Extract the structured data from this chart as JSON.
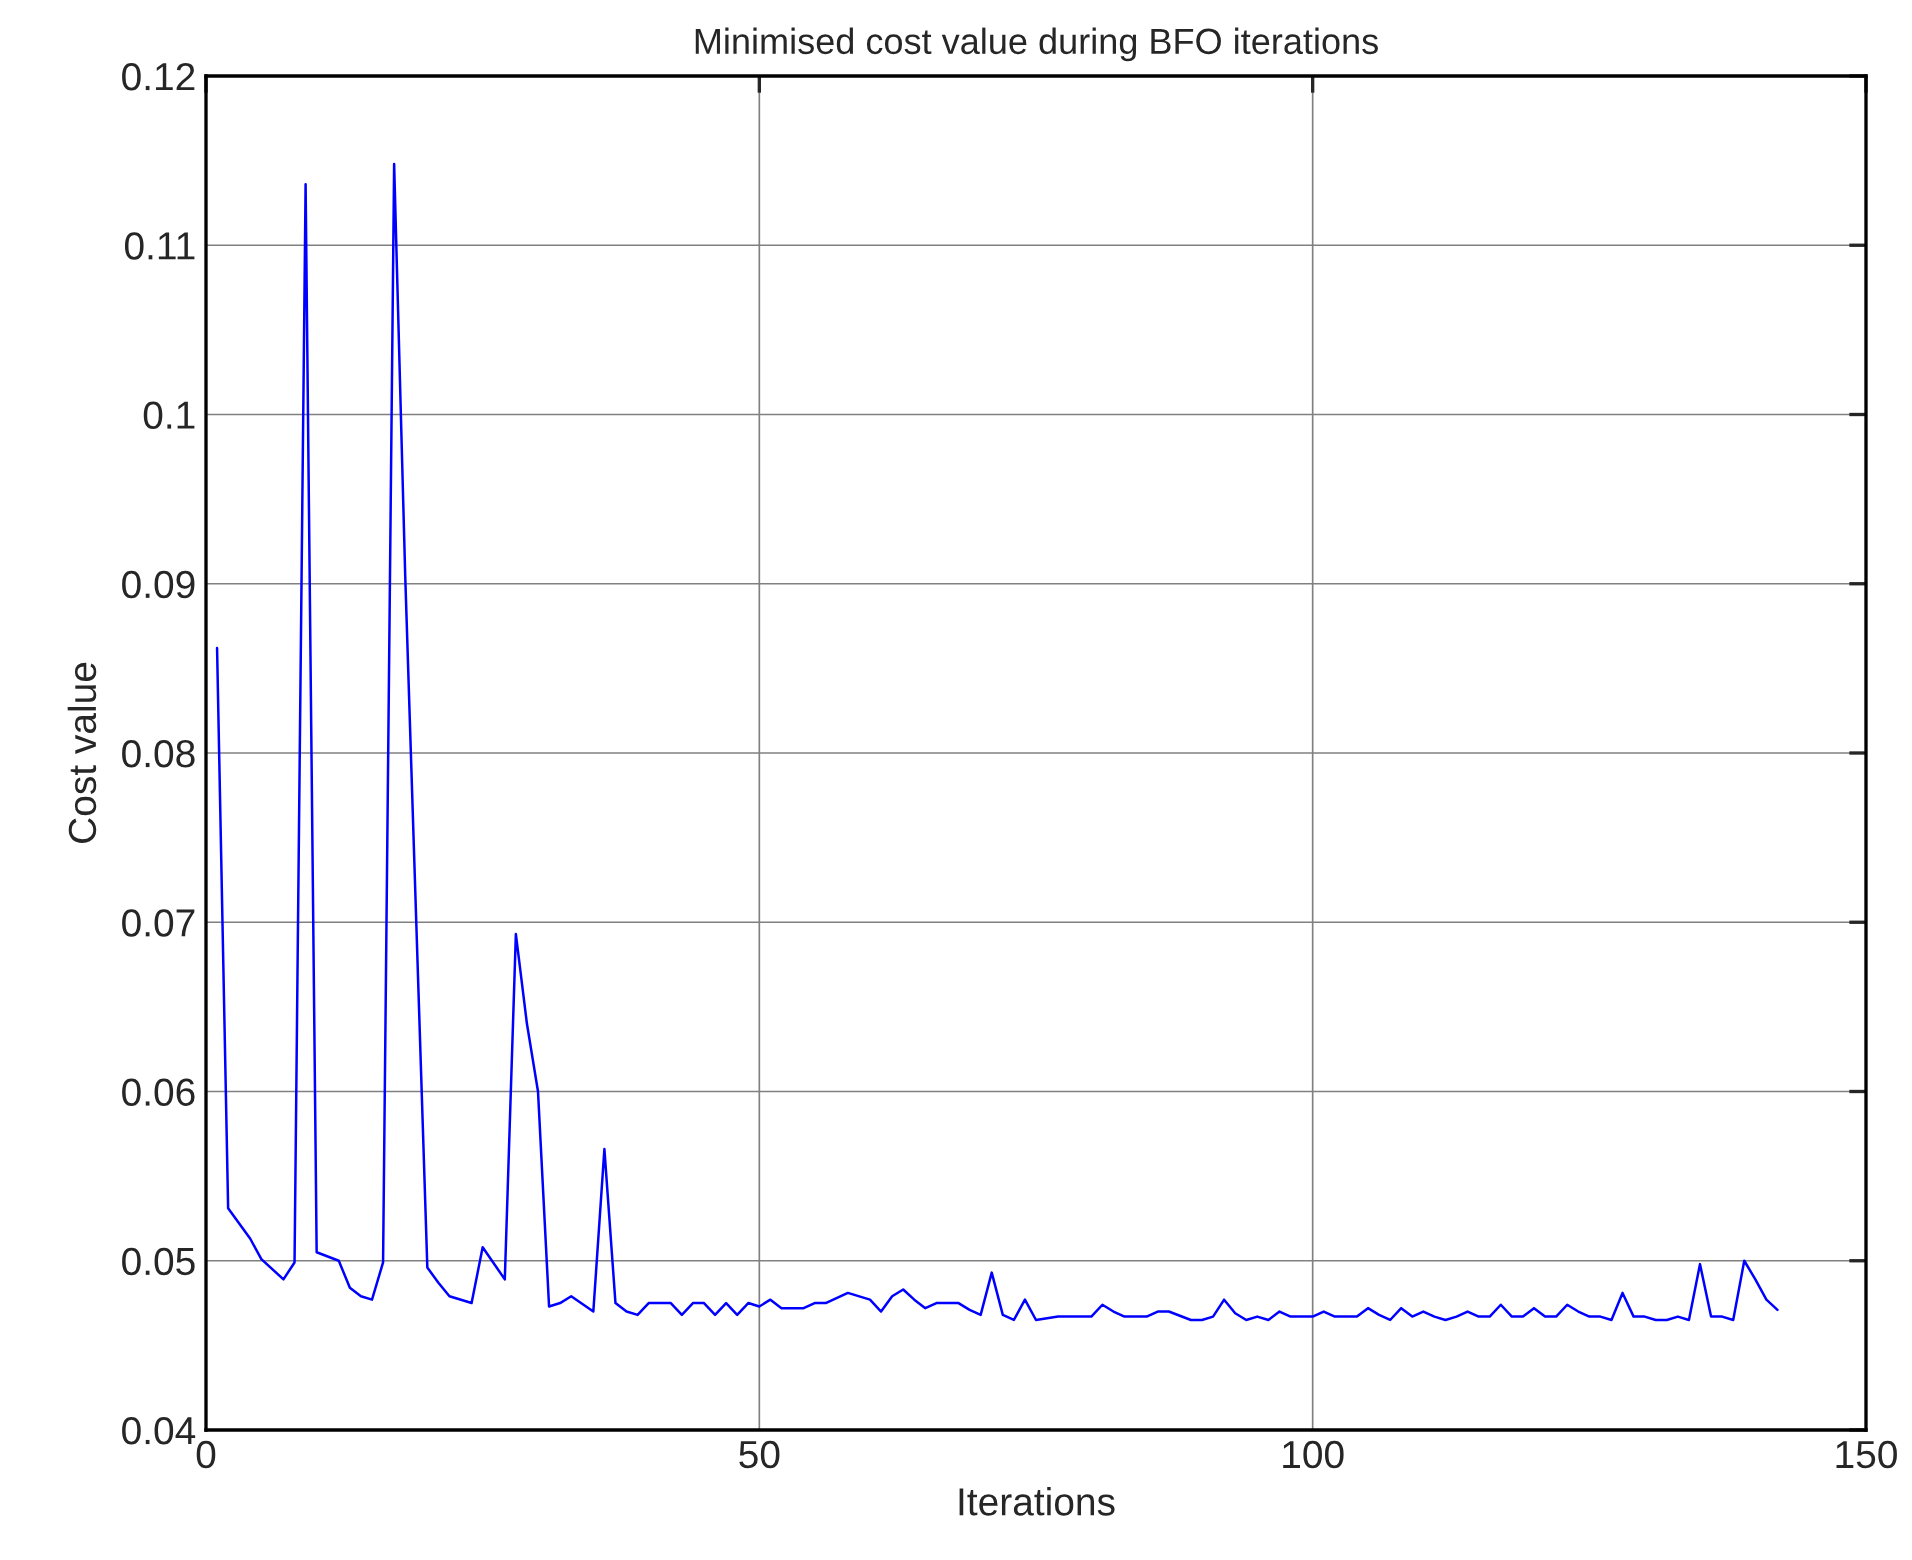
{
  "chart_data": {
    "type": "line",
    "title": "Minimised cost value during BFO iterations",
    "xlabel": "Iterations",
    "ylabel": "Cost value",
    "xlim": [
      0,
      150
    ],
    "xticks": [
      0,
      50,
      100,
      150
    ],
    "ylim": [
      0.04,
      0.12
    ],
    "yticks": [
      0.04,
      0.05,
      0.06,
      0.07,
      0.08,
      0.09,
      0.1,
      0.11,
      0.12
    ],
    "grid": true,
    "series": [
      {
        "color": "#0000ff",
        "x": [
          1,
          2,
          3,
          4,
          5,
          7,
          8,
          9,
          10,
          12,
          13,
          14,
          15,
          16,
          17,
          18,
          19,
          20,
          21,
          22,
          24,
          25,
          27,
          28,
          29,
          30,
          31,
          32,
          33,
          35,
          36,
          37,
          38,
          39,
          40,
          42,
          43,
          44,
          45,
          46,
          47,
          48,
          49,
          50,
          51,
          52,
          54,
          55,
          56,
          58,
          60,
          61,
          62,
          63,
          64,
          65,
          66,
          68,
          69,
          70,
          71,
          72,
          73,
          74,
          75,
          77,
          80,
          81,
          82,
          83,
          85,
          86,
          87,
          89,
          90,
          91,
          92,
          93,
          94,
          95,
          96,
          97,
          98,
          100,
          101,
          102,
          104,
          105,
          106,
          107,
          108,
          109,
          110,
          111,
          112,
          113,
          114,
          115,
          116,
          117,
          118,
          119,
          120,
          121,
          122,
          123,
          124,
          125,
          126,
          127,
          128,
          129,
          130,
          131,
          132,
          133,
          134,
          135,
          136,
          137,
          138,
          139,
          140,
          141,
          142
        ],
        "values": [
          0.0862,
          0.0531,
          0.0522,
          0.0513,
          0.0501,
          0.0489,
          0.0499,
          0.1136,
          0.0505,
          0.05,
          0.0484,
          0.0479,
          0.0477,
          0.0499,
          0.1148,
          0.0905,
          0.07,
          0.0496,
          0.0487,
          0.0479,
          0.0475,
          0.0508,
          0.0489,
          0.0693,
          0.064,
          0.06,
          0.0473,
          0.0475,
          0.0479,
          0.047,
          0.0566,
          0.0475,
          0.047,
          0.0468,
          0.0475,
          0.0475,
          0.0468,
          0.0475,
          0.0475,
          0.0468,
          0.0475,
          0.0468,
          0.0475,
          0.0473,
          0.0477,
          0.0472,
          0.0472,
          0.0475,
          0.0475,
          0.0481,
          0.0477,
          0.047,
          0.0479,
          0.0483,
          0.0477,
          0.0472,
          0.0475,
          0.0475,
          0.0471,
          0.0468,
          0.0493,
          0.0468,
          0.0465,
          0.0477,
          0.0465,
          0.0467,
          0.0467,
          0.0474,
          0.047,
          0.0467,
          0.0467,
          0.047,
          0.047,
          0.0465,
          0.0465,
          0.0467,
          0.0477,
          0.0469,
          0.0465,
          0.0467,
          0.0465,
          0.047,
          0.0467,
          0.0467,
          0.047,
          0.0467,
          0.0467,
          0.0472,
          0.0468,
          0.0465,
          0.0472,
          0.0467,
          0.047,
          0.0467,
          0.0465,
          0.0467,
          0.047,
          0.0467,
          0.0467,
          0.0474,
          0.0467,
          0.0467,
          0.0472,
          0.0467,
          0.0467,
          0.0474,
          0.047,
          0.0467,
          0.0467,
          0.0465,
          0.0481,
          0.0467,
          0.0467,
          0.0465,
          0.0465,
          0.0467,
          0.0465,
          0.0498,
          0.0467,
          0.0467,
          0.0465,
          0.05,
          0.0489,
          0.0477,
          0.0471
        ]
      }
    ]
  }
}
